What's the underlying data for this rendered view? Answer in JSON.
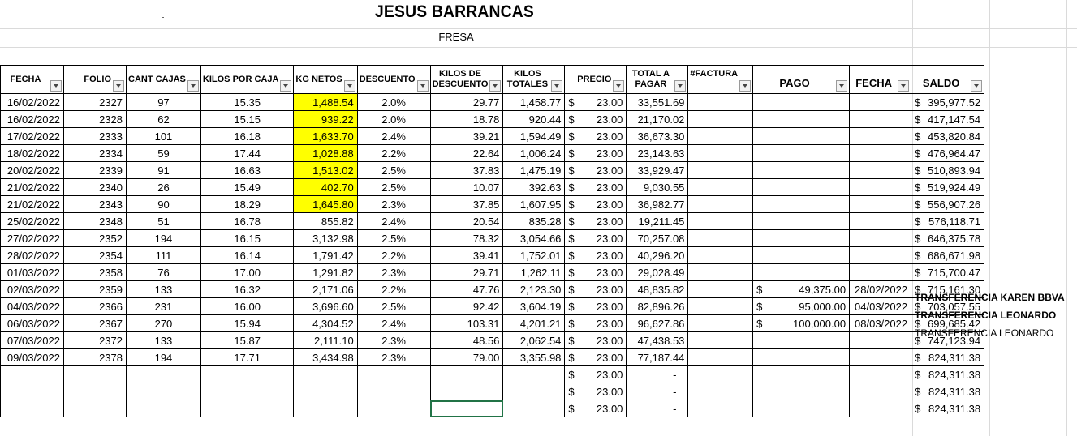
{
  "sheet": {
    "title": "JESUS BARRANCAS",
    "subtitle": "FRESA"
  },
  "headers": {
    "fecha": "FECHA",
    "folio": "FOLIO",
    "cant_cajas": "CANT CAJAS",
    "kilos_por_caja": "KILOS POR CAJA",
    "kg_netos": "KG NETOS",
    "descuento": "DESCUENTO",
    "kilos_descuento": "KILOS DE DESCUENTO",
    "kilos_totales": "KILOS TOTALES",
    "precio": "PRECIO",
    "total_pagar": "TOTAL A PAGAR",
    "factura": "#FACTURA",
    "pago": "PAGO",
    "fecha_pago": "FECHA",
    "saldo": "SALDO"
  },
  "currency_symbol": "$",
  "rows": [
    {
      "fecha": "16/02/2022",
      "folio": "2327",
      "cajas": "97",
      "kpc": "15.35",
      "netos": "1,488.54",
      "hl": true,
      "desc": "2.0%",
      "kdesc": "29.77",
      "ktot": "1,458.77",
      "precio": "23.00",
      "total": "33,551.69",
      "pago": "",
      "fpago": "",
      "saldo": "395,977.52",
      "nota": ""
    },
    {
      "fecha": "16/02/2022",
      "folio": "2328",
      "cajas": "62",
      "kpc": "15.15",
      "netos": "939.22",
      "hl": true,
      "desc": "2.0%",
      "kdesc": "18.78",
      "ktot": "920.44",
      "precio": "23.00",
      "total": "21,170.02",
      "pago": "",
      "fpago": "",
      "saldo": "417,147.54",
      "nota": ""
    },
    {
      "fecha": "17/02/2022",
      "folio": "2333",
      "cajas": "101",
      "kpc": "16.18",
      "netos": "1,633.70",
      "hl": true,
      "desc": "2.4%",
      "kdesc": "39.21",
      "ktot": "1,594.49",
      "precio": "23.00",
      "total": "36,673.30",
      "pago": "",
      "fpago": "",
      "saldo": "453,820.84",
      "nota": ""
    },
    {
      "fecha": "18/02/2022",
      "folio": "2334",
      "cajas": "59",
      "kpc": "17.44",
      "netos": "1,028.88",
      "hl": true,
      "desc": "2.2%",
      "kdesc": "22.64",
      "ktot": "1,006.24",
      "precio": "23.00",
      "total": "23,143.63",
      "pago": "",
      "fpago": "",
      "saldo": "476,964.47",
      "nota": ""
    },
    {
      "fecha": "20/02/2022",
      "folio": "2339",
      "cajas": "91",
      "kpc": "16.63",
      "netos": "1,513.02",
      "hl": true,
      "desc": "2.5%",
      "kdesc": "37.83",
      "ktot": "1,475.19",
      "precio": "23.00",
      "total": "33,929.47",
      "pago": "",
      "fpago": "",
      "saldo": "510,893.94",
      "nota": ""
    },
    {
      "fecha": "21/02/2022",
      "folio": "2340",
      "cajas": "26",
      "kpc": "15.49",
      "netos": "402.70",
      "hl": true,
      "desc": "2.5%",
      "kdesc": "10.07",
      "ktot": "392.63",
      "precio": "23.00",
      "total": "9,030.55",
      "pago": "",
      "fpago": "",
      "saldo": "519,924.49",
      "nota": ""
    },
    {
      "fecha": "21/02/2022",
      "folio": "2343",
      "cajas": "90",
      "kpc": "18.29",
      "netos": "1,645.80",
      "hl": true,
      "desc": "2.3%",
      "kdesc": "37.85",
      "ktot": "1,607.95",
      "precio": "23.00",
      "total": "36,982.77",
      "pago": "",
      "fpago": "",
      "saldo": "556,907.26",
      "nota": ""
    },
    {
      "fecha": "25/02/2022",
      "folio": "2348",
      "cajas": "51",
      "kpc": "16.78",
      "netos": "855.82",
      "hl": false,
      "desc": "2.4%",
      "kdesc": "20.54",
      "ktot": "835.28",
      "precio": "23.00",
      "total": "19,211.45",
      "pago": "",
      "fpago": "",
      "saldo": "576,118.71",
      "nota": ""
    },
    {
      "fecha": "27/02/2022",
      "folio": "2352",
      "cajas": "194",
      "kpc": "16.15",
      "netos": "3,132.98",
      "hl": false,
      "desc": "2.5%",
      "kdesc": "78.32",
      "ktot": "3,054.66",
      "precio": "23.00",
      "total": "70,257.08",
      "pago": "",
      "fpago": "",
      "saldo": "646,375.78",
      "nota": ""
    },
    {
      "fecha": "28/02/2022",
      "folio": "2354",
      "cajas": "111",
      "kpc": "16.14",
      "netos": "1,791.42",
      "hl": false,
      "desc": "2.2%",
      "kdesc": "39.41",
      "ktot": "1,752.01",
      "precio": "23.00",
      "total": "40,296.20",
      "pago": "",
      "fpago": "",
      "saldo": "686,671.98",
      "nota": ""
    },
    {
      "fecha": "01/03/2022",
      "folio": "2358",
      "cajas": "76",
      "kpc": "17.00",
      "netos": "1,291.82",
      "hl": false,
      "desc": "2.3%",
      "kdesc": "29.71",
      "ktot": "1,262.11",
      "precio": "23.00",
      "total": "29,028.49",
      "pago": "",
      "fpago": "",
      "saldo": "715,700.47",
      "nota": ""
    },
    {
      "fecha": "02/03/2022",
      "folio": "2359",
      "cajas": "133",
      "kpc": "16.32",
      "netos": "2,171.06",
      "hl": false,
      "desc": "2.2%",
      "kdesc": "47.76",
      "ktot": "2,123.30",
      "precio": "23.00",
      "total": "48,835.82",
      "pago": "49,375.00",
      "fpago": "28/02/2022",
      "saldo": "715,161.30",
      "nota": "TRANSFERENCIA KAREN BBVA"
    },
    {
      "fecha": "04/03/2022",
      "folio": "2366",
      "cajas": "231",
      "kpc": "16.00",
      "netos": "3,696.60",
      "hl": false,
      "desc": "2.5%",
      "kdesc": "92.42",
      "ktot": "3,604.19",
      "precio": "23.00",
      "total": "82,896.26",
      "pago": "95,000.00",
      "fpago": "04/03/2022",
      "saldo": "703,057.55",
      "nota": "TRANSFERENCIA  LEONARDO"
    },
    {
      "fecha": "06/03/2022",
      "folio": "2367",
      "cajas": "270",
      "kpc": "15.94",
      "netos": "4,304.52",
      "hl": false,
      "desc": "2.4%",
      "kdesc": "103.31",
      "ktot": "4,201.21",
      "precio": "23.00",
      "total": "96,627.86",
      "pago": "100,000.00",
      "fpago": "08/03/2022",
      "saldo": "699,685.42",
      "nota": "TRANSFERENCIA  LEONARDO"
    },
    {
      "fecha": "07/03/2022",
      "folio": "2372",
      "cajas": "133",
      "kpc": "15.87",
      "netos": "2,111.10",
      "hl": false,
      "desc": "2.3%",
      "kdesc": "48.56",
      "ktot": "2,062.54",
      "precio": "23.00",
      "total": "47,438.53",
      "pago": "",
      "fpago": "",
      "saldo": "747,123.94",
      "nota": ""
    },
    {
      "fecha": "09/03/2022",
      "folio": "2378",
      "cajas": "194",
      "kpc": "17.71",
      "netos": "3,434.98",
      "hl": false,
      "desc": "2.3%",
      "kdesc": "79.00",
      "ktot": "3,355.98",
      "precio": "23.00",
      "total": "77,187.44",
      "pago": "",
      "fpago": "",
      "saldo": "824,311.38",
      "nota": ""
    },
    {
      "fecha": "",
      "folio": "",
      "cajas": "",
      "kpc": "",
      "netos": "",
      "hl": false,
      "desc": "",
      "kdesc": "",
      "ktot": "",
      "precio": "23.00",
      "total": "-",
      "pago": "",
      "fpago": "",
      "saldo": "824,311.38",
      "nota": ""
    },
    {
      "fecha": "",
      "folio": "",
      "cajas": "",
      "kpc": "",
      "netos": "",
      "hl": false,
      "desc": "",
      "kdesc": "",
      "ktot": "",
      "precio": "23.00",
      "total": "-",
      "pago": "",
      "fpago": "",
      "saldo": "824,311.38",
      "nota": ""
    },
    {
      "fecha": "",
      "folio": "",
      "cajas": "",
      "kpc": "",
      "netos": "",
      "hl": false,
      "desc": "",
      "kdesc": "",
      "ktot": "",
      "precio": "23.00",
      "total": "-",
      "pago": "",
      "fpago": "",
      "saldo": "824,311.38",
      "nota": ""
    }
  ],
  "colors": {
    "highlight": "#ffff00",
    "selection": "#217346",
    "gridline": "#dadada"
  }
}
